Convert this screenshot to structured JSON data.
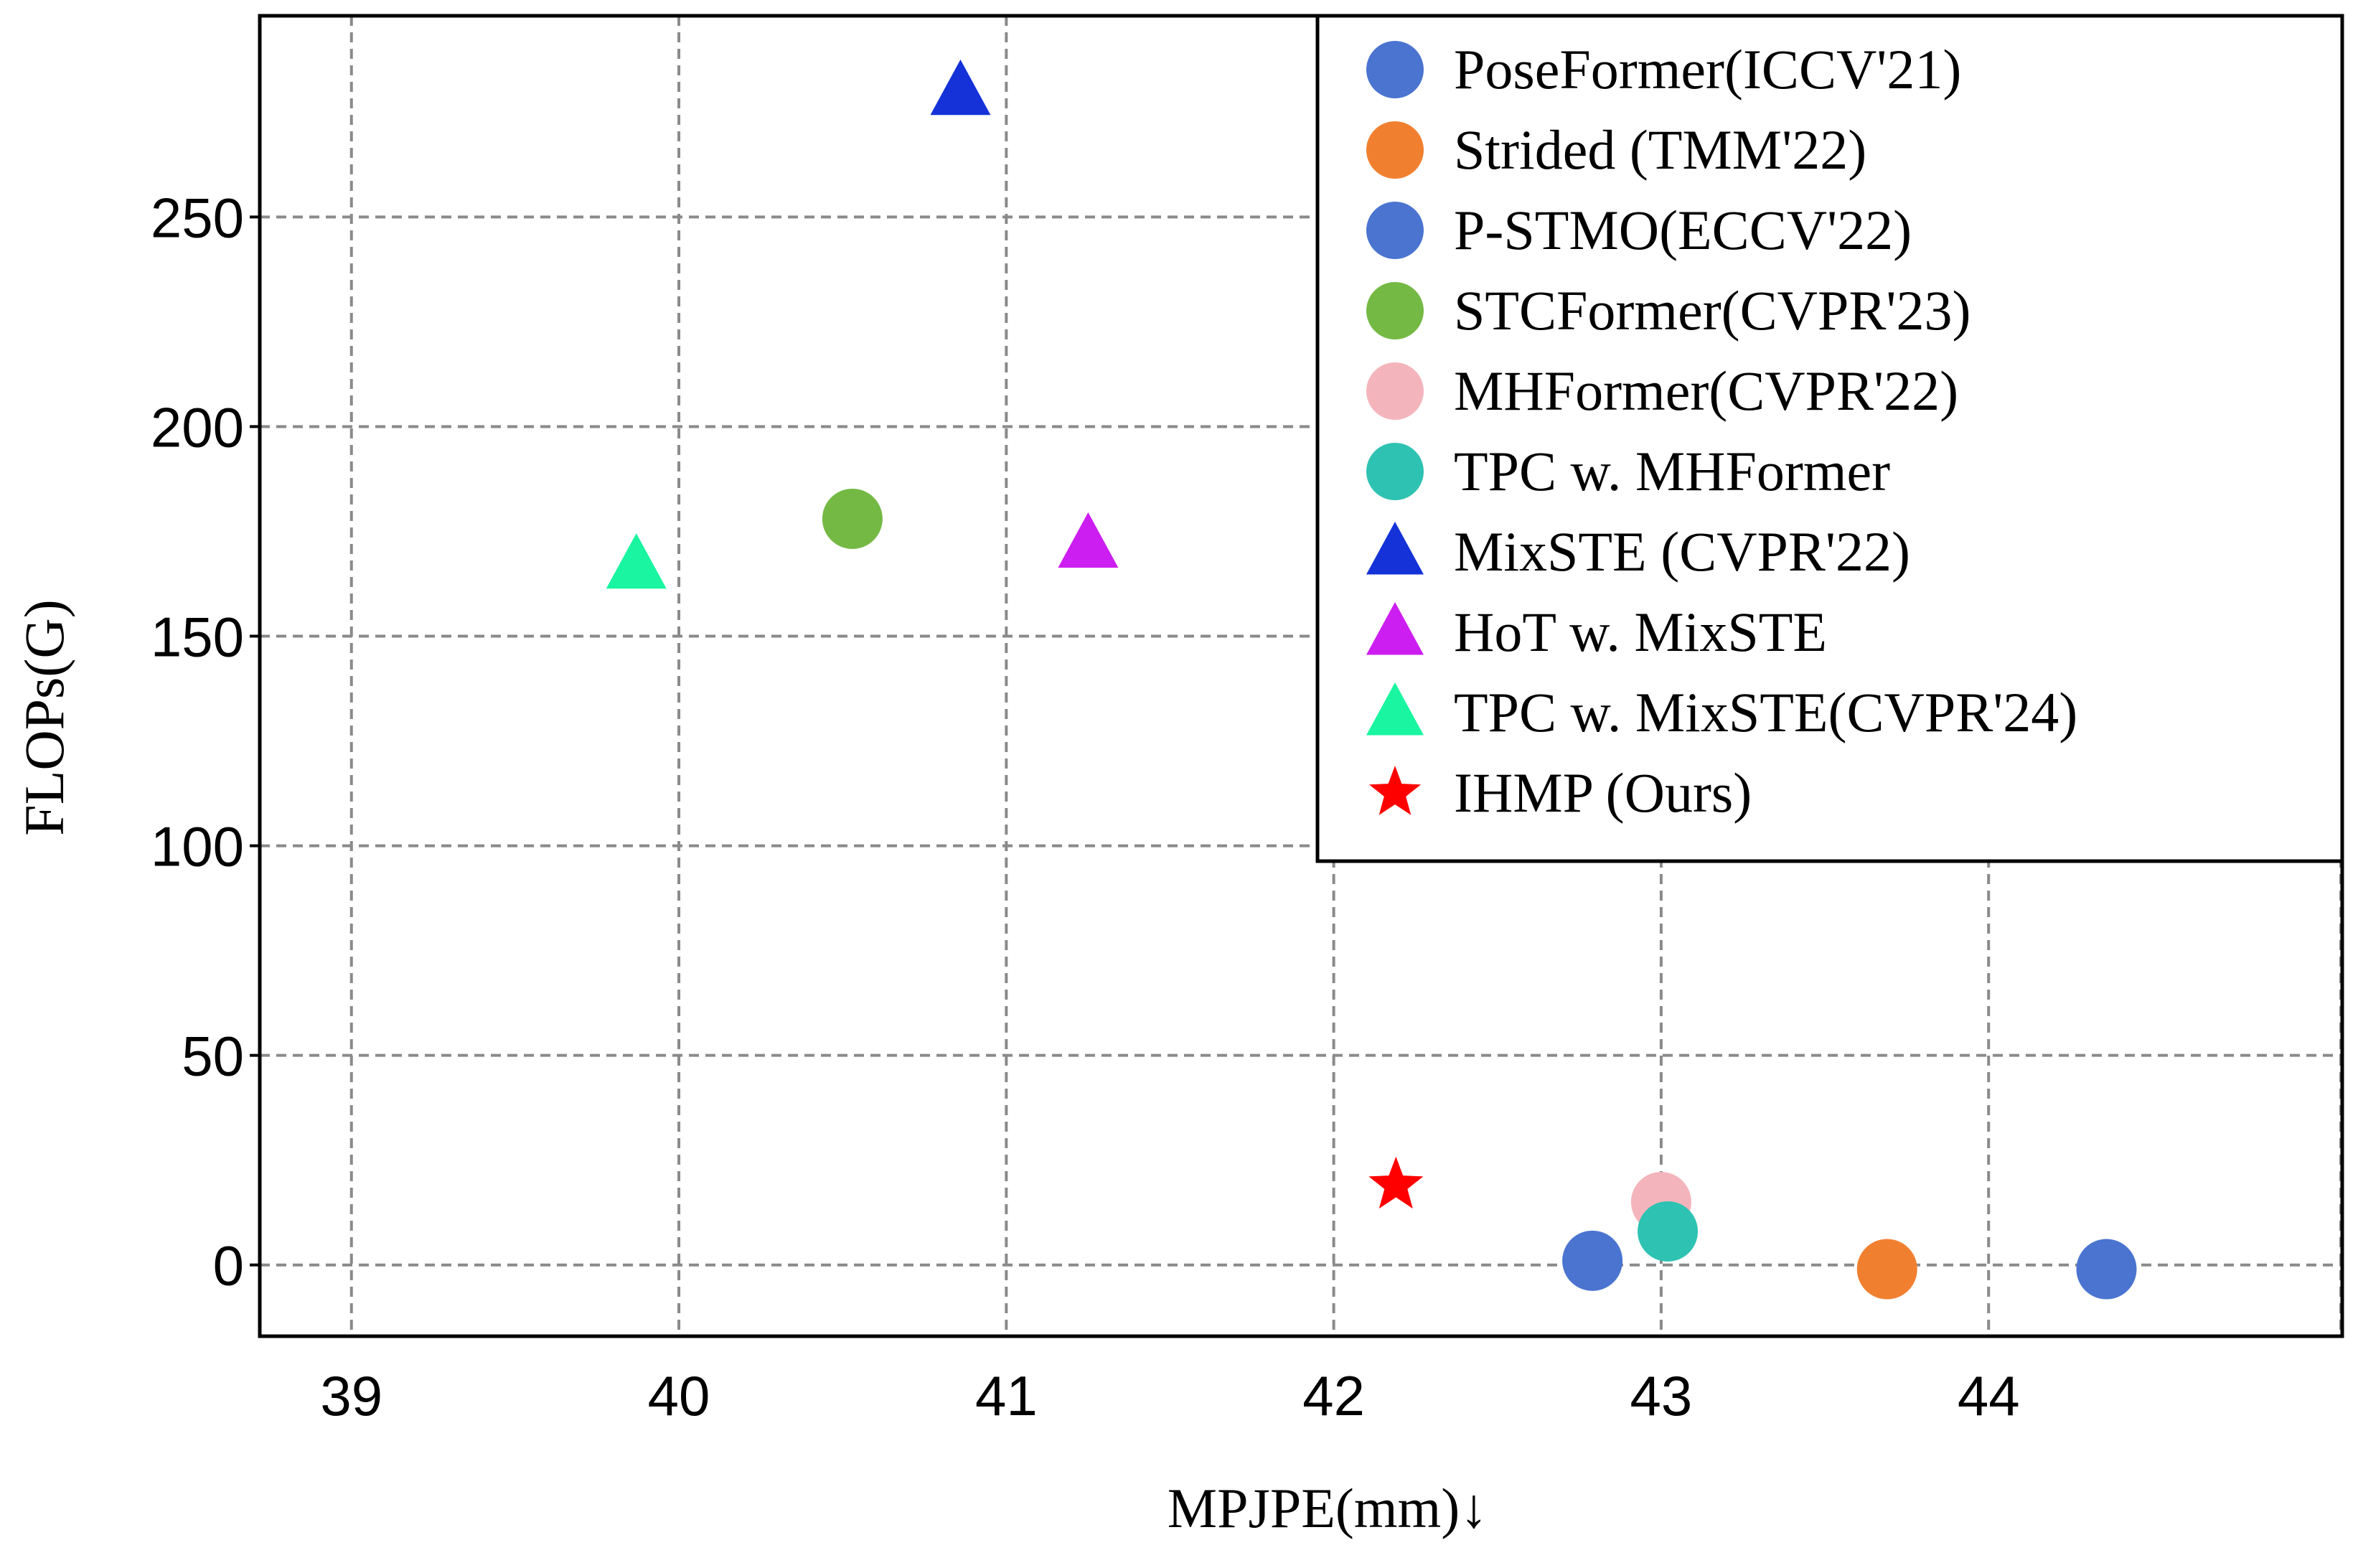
{
  "chart_data": {
    "type": "scatter",
    "xlabel": "MPJPE(mm)↓",
    "ylabel": "FLOPs(G)",
    "xlim": [
      38.72,
      45.08
    ],
    "ylim": [
      -17,
      298
    ],
    "x_ticks": [
      {
        "value": 39,
        "label": "39"
      },
      {
        "value": 40,
        "label": "40"
      },
      {
        "value": 41,
        "label": "41"
      },
      {
        "value": 42,
        "label": "42"
      },
      {
        "value": 43,
        "label": "43"
      },
      {
        "value": 44,
        "label": "44"
      }
    ],
    "y_ticks": [
      {
        "value": 0,
        "label": "0"
      },
      {
        "value": 50,
        "label": "50"
      },
      {
        "value": 100,
        "label": "100"
      },
      {
        "value": 150,
        "label": "150"
      },
      {
        "value": 200,
        "label": "200"
      },
      {
        "value": 250,
        "label": "250"
      }
    ],
    "grid": true,
    "grid_style": "dashed",
    "legend_position": "top-right",
    "series": [
      {
        "name": "PoseFormer(ICCV'21)",
        "marker": "circle",
        "color": "#4a74d0",
        "points": [
          {
            "x": 44.36,
            "y": -1
          }
        ]
      },
      {
        "name": "Strided (TMM'22)",
        "marker": "circle",
        "color": "#f08030",
        "points": [
          {
            "x": 43.69,
            "y": -1
          }
        ]
      },
      {
        "name": "P-STMO(ECCV'22)",
        "marker": "circle",
        "color": "#4a74d0",
        "points": [
          {
            "x": 42.79,
            "y": 1
          }
        ]
      },
      {
        "name": "STCFormer(CVPR'23)",
        "marker": "circle",
        "color": "#74b944",
        "points": [
          {
            "x": 40.53,
            "y": 178
          }
        ]
      },
      {
        "name": "MHFormer(CVPR'22)",
        "marker": "circle",
        "color": "#f4b4bb",
        "points": [
          {
            "x": 43.0,
            "y": 15
          }
        ]
      },
      {
        "name": "TPC w. MHFormer",
        "marker": "circle",
        "color": "#2ec2b2",
        "points": [
          {
            "x": 43.02,
            "y": 8
          }
        ]
      },
      {
        "name": "MixSTE (CVPR'22)",
        "marker": "triangle",
        "color": "#1432d8",
        "points": [
          {
            "x": 40.86,
            "y": 280
          }
        ]
      },
      {
        "name": "HoT w. MixSTE",
        "marker": "triangle",
        "color": "#cc1ef0",
        "points": [
          {
            "x": 41.25,
            "y": 172
          }
        ]
      },
      {
        "name": "TPC w. MixSTE(CVPR'24)",
        "marker": "triangle",
        "color": "#19f5a0",
        "points": [
          {
            "x": 39.87,
            "y": 167
          }
        ]
      },
      {
        "name": "IHMP (Ours)",
        "marker": "star",
        "color": "#ff0000",
        "points": [
          {
            "x": 42.19,
            "y": 19
          }
        ]
      }
    ]
  }
}
